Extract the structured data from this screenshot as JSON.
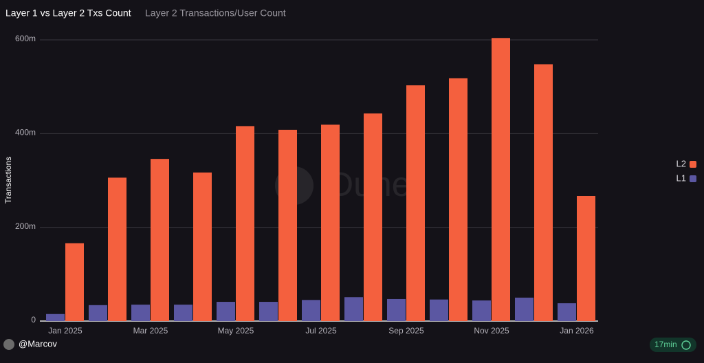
{
  "chart_data": {
    "type": "bar",
    "title": "Layer 1 vs Layer 2 Txs Count",
    "subtitle": "Layer 2 Transactions/User Count",
    "y_label": "Transactions",
    "watermark": "Dune",
    "categories": [
      "Jan 2025",
      null,
      "Mar 2025",
      null,
      "May 2025",
      null,
      "Jul 2025",
      null,
      "Sep 2025",
      null,
      "Nov 2025",
      null,
      "Jan 2026"
    ],
    "series": [
      {
        "name": "L2",
        "color": "#f4603e",
        "values": [
          166,
          306,
          346,
          317,
          416,
          408,
          419,
          443,
          503,
          518,
          604,
          548,
          267
        ]
      },
      {
        "name": "L1",
        "color": "#5b57a2",
        "values": [
          15,
          34,
          35,
          35,
          41,
          41,
          45,
          51,
          47,
          46,
          44,
          50,
          38
        ]
      }
    ],
    "ylim": [
      0,
      600
    ],
    "yticks": [
      0,
      {
        "value": 200,
        "label": "200m"
      },
      {
        "value": 400,
        "label": "400m"
      },
      {
        "value": 600,
        "label": "600m"
      }
    ],
    "grid": true,
    "legend": "right"
  },
  "footer": {
    "author": "@Marcov",
    "updated": "17min"
  }
}
